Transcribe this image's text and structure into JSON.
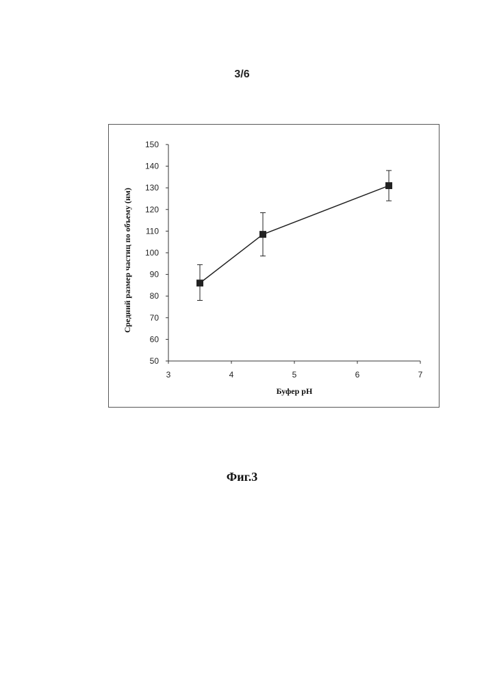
{
  "page": {
    "number": "3/6",
    "caption": "Фиг.3"
  },
  "chart_data": {
    "type": "line",
    "xlabel": "Буфер pH",
    "ylabel": "Средний размер частиц по объему (нм)",
    "xlim": [
      3,
      7
    ],
    "ylim": [
      50,
      150
    ],
    "x_ticks": [
      3,
      4,
      5,
      6,
      7
    ],
    "y_ticks": [
      50,
      60,
      70,
      80,
      90,
      100,
      110,
      120,
      130,
      140,
      150
    ],
    "grid": false,
    "legend": "none",
    "series": [
      {
        "marker": "square",
        "color": "#222222",
        "points": [
          {
            "x": 3.5,
            "y": 86,
            "err_low": 78,
            "err_high": 94.5
          },
          {
            "x": 4.5,
            "y": 108.5,
            "err_low": 98.5,
            "err_high": 118.5
          },
          {
            "x": 6.5,
            "y": 131,
            "err_low": 124,
            "err_high": 138
          }
        ]
      }
    ]
  }
}
